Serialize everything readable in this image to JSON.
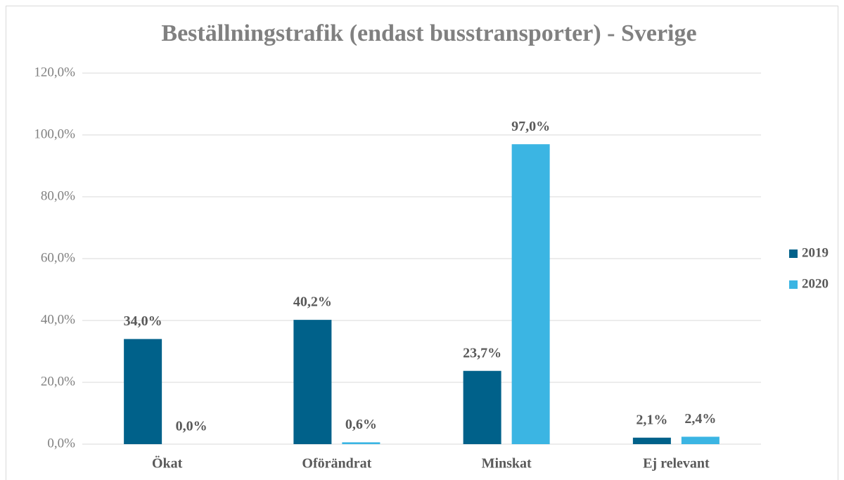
{
  "chart_data": {
    "type": "bar",
    "title": "Beställningstrafik (endast busstransporter) - Sverige",
    "categories": [
      "Ökat",
      "Oförändrat",
      "Minskat",
      "Ej relevant"
    ],
    "series": [
      {
        "name": "2019",
        "color": "#00618a",
        "values": [
          34.0,
          40.2,
          23.7,
          2.1
        ],
        "value_labels": [
          "34,0%",
          "40,2%",
          "23,7%",
          "2,1%"
        ]
      },
      {
        "name": "2020",
        "color": "#3bb5e3",
        "values": [
          0.0,
          0.6,
          97.0,
          2.4
        ],
        "value_labels": [
          "0,0%",
          "0,6%",
          "97,0%",
          "2,4%"
        ]
      }
    ],
    "ylim": [
      0,
      120
    ],
    "yticks": [
      {
        "value": 0,
        "label": "0,0%"
      },
      {
        "value": 20,
        "label": "20,0%"
      },
      {
        "value": 40,
        "label": "40,0%"
      },
      {
        "value": 60,
        "label": "60,0%"
      },
      {
        "value": 80,
        "label": "80,0%"
      },
      {
        "value": 100,
        "label": "100,0%"
      },
      {
        "value": 120,
        "label": "120,0%"
      }
    ],
    "grid": true,
    "legend": "right"
  }
}
